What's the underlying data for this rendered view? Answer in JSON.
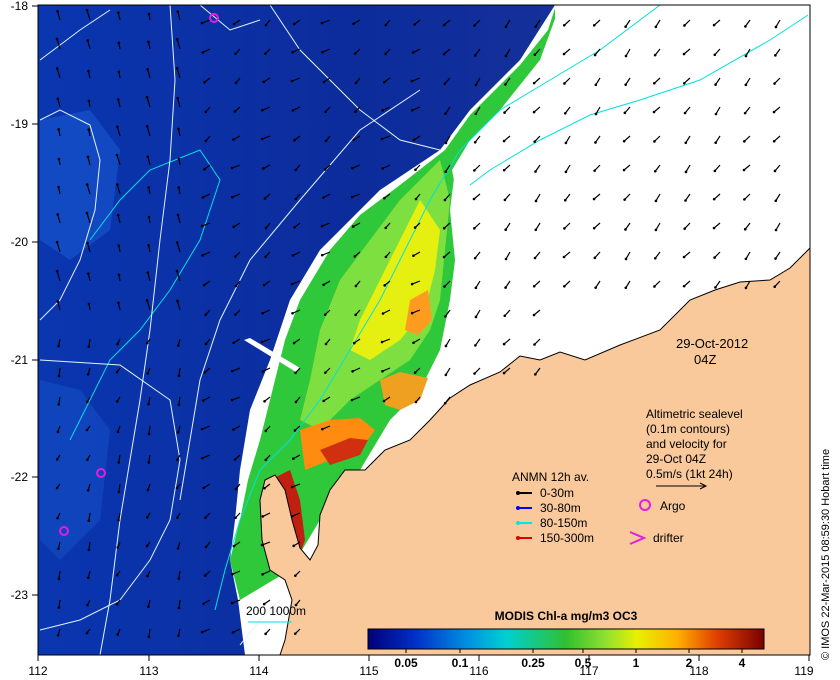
{
  "map": {
    "date": "29-Oct-2012",
    "hour": "04Z",
    "credit": "© IMOS 22-Mar-2015 08:59:30 Hobart time",
    "x_ticks": [
      "112",
      "113",
      "114",
      "115",
      "116",
      "117",
      "118",
      "119"
    ],
    "y_ticks": [
      "-18",
      "-19",
      "-20",
      "-21",
      "-22",
      "-23"
    ],
    "depth_scale_label": "200  1000m",
    "altimetry_note": [
      "Altimetric sealevel",
      "(0.1m contours)",
      "and velocity for",
      "29-Oct 04Z",
      "0.5m/s (1kt 24h)"
    ],
    "legend_title": "ANMN 12h av.",
    "legend_items": [
      {
        "label": "0-30m",
        "color": "#000000"
      },
      {
        "label": "30-80m",
        "color": "#0000ff"
      },
      {
        "label": "80-150m",
        "color": "#00e5e5"
      },
      {
        "label": "150-300m",
        "color": "#e00000"
      }
    ],
    "argo_label": "Argo",
    "drifter_label": "drifter",
    "colorbar_title": "MODIS Chl-a mg/m3 OC3",
    "colorbar_ticks": [
      "0.05",
      "0.1",
      "0.25",
      "0.5",
      "1",
      "2",
      "4"
    ],
    "colors": {
      "land": "#f9c89b",
      "deep_ocean": "#0a2a9a",
      "argo": "#e020e0",
      "contour": "#b8f0ff"
    }
  }
}
